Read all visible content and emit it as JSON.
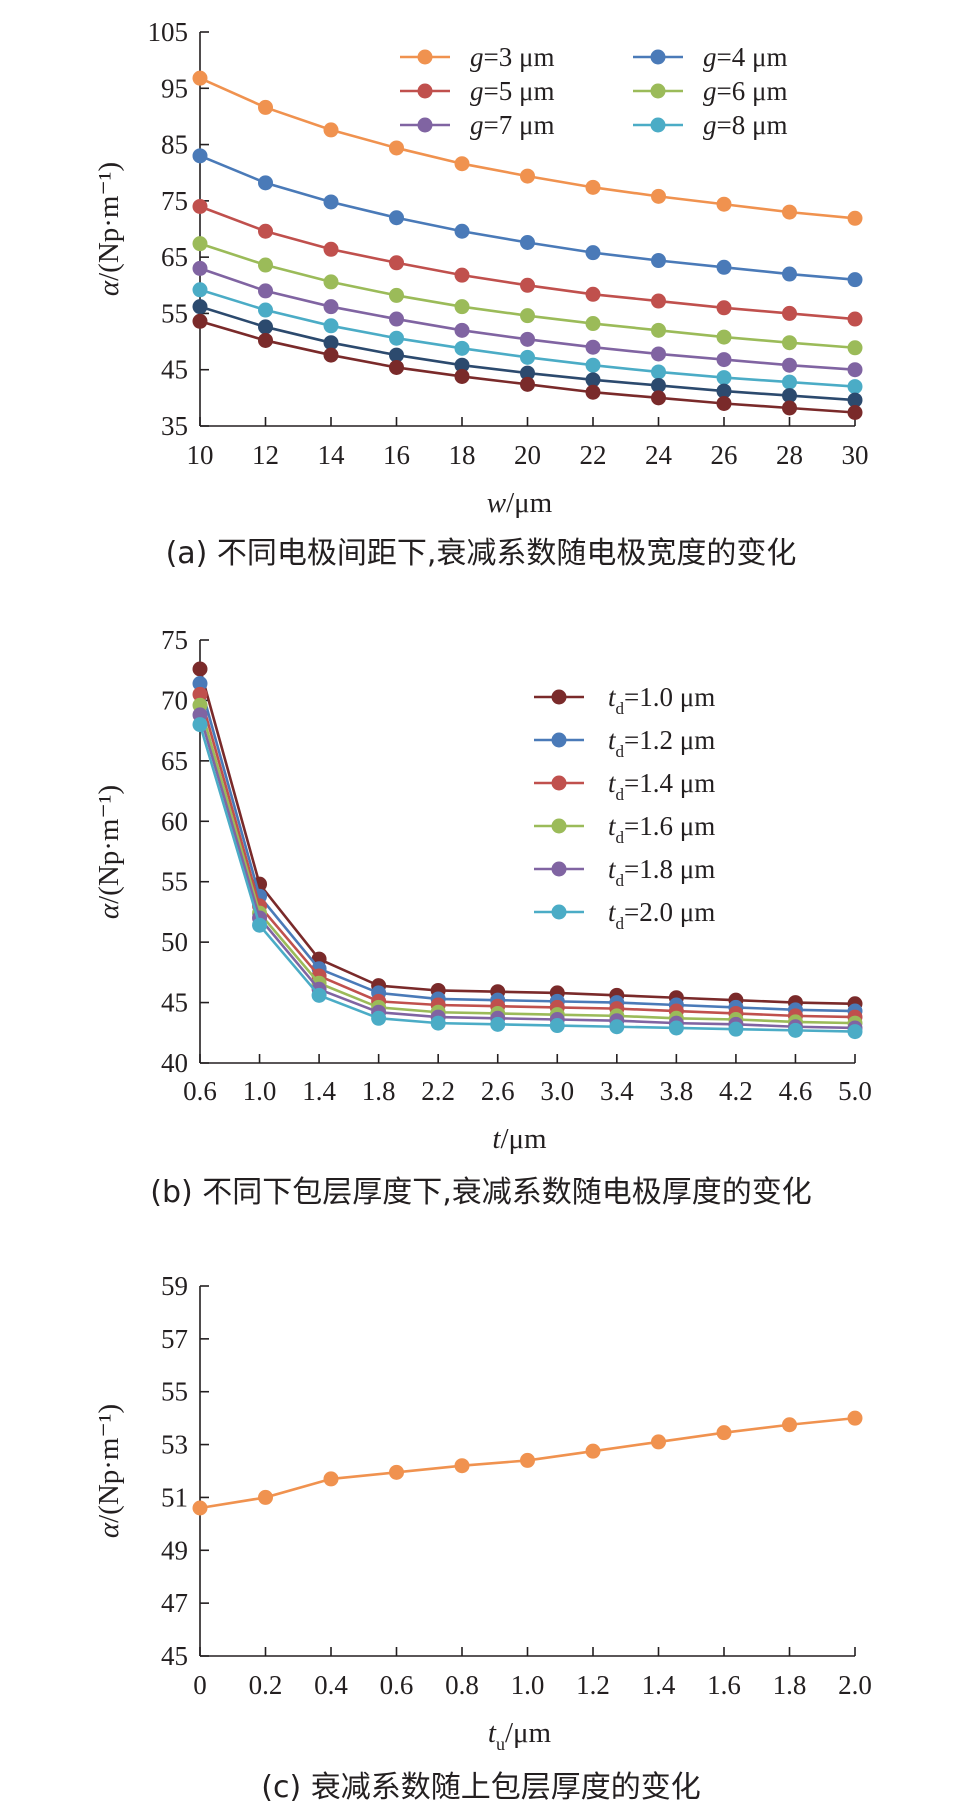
{
  "chart_data": [
    {
      "id": "a",
      "type": "line",
      "title": "",
      "caption": "(a) 不同电极间距下,衰减系数随电极宽度的变化",
      "xlabel": "w/μm",
      "ylabel": "α/(Np·m⁻¹)",
      "xlim": [
        10,
        30
      ],
      "ylim": [
        35,
        105
      ],
      "xticks": [
        "10",
        "12",
        "14",
        "16",
        "18",
        "20",
        "22",
        "24",
        "26",
        "28",
        "30"
      ],
      "yticks": [
        "35",
        "45",
        "55",
        "65",
        "75",
        "85",
        "95",
        "105"
      ],
      "grid": false,
      "legend_position": "top-right",
      "x": [
        10,
        12,
        14,
        16,
        18,
        20,
        22,
        24,
        26,
        28,
        30
      ],
      "series": [
        {
          "name": "g=3 μm",
          "color": "#f0924f",
          "values": [
            96.8,
            91.6,
            87.6,
            84.4,
            81.6,
            79.4,
            77.4,
            75.8,
            74.4,
            73.0,
            71.9
          ]
        },
        {
          "name": "g=4 μm",
          "color": "#4a7ab8",
          "values": [
            83.0,
            78.2,
            74.8,
            72.0,
            69.6,
            67.6,
            65.8,
            64.4,
            63.2,
            62.0,
            61.0
          ]
        },
        {
          "name": "g=5 μm",
          "color": "#c0504d",
          "values": [
            74.0,
            69.6,
            66.4,
            64.0,
            61.8,
            60.0,
            58.4,
            57.2,
            56.0,
            55.0,
            54.0
          ]
        },
        {
          "name": "g=6 μm",
          "color": "#9bbb59",
          "values": [
            67.4,
            63.6,
            60.6,
            58.2,
            56.2,
            54.6,
            53.2,
            52.0,
            50.8,
            49.8,
            48.9
          ]
        },
        {
          "name": "g=7 μm",
          "color": "#8064a2",
          "values": [
            63.0,
            59.0,
            56.2,
            54.0,
            52.0,
            50.4,
            49.0,
            47.8,
            46.8,
            45.8,
            45.0
          ]
        },
        {
          "name": "g=8 μm",
          "color": "#4bacc6",
          "values": [
            59.2,
            55.6,
            52.8,
            50.6,
            48.8,
            47.2,
            45.8,
            44.6,
            43.6,
            42.8,
            42.0
          ]
        },
        {
          "name": "",
          "color": "#2c4a6e",
          "values": [
            56.2,
            52.6,
            49.8,
            47.6,
            45.8,
            44.4,
            43.2,
            42.2,
            41.2,
            40.4,
            39.6
          ]
        },
        {
          "name": "",
          "color": "#7a2a2a",
          "values": [
            53.6,
            50.2,
            47.6,
            45.4,
            43.8,
            42.4,
            41.0,
            40.0,
            39.0,
            38.2,
            37.4
          ]
        }
      ]
    },
    {
      "id": "b",
      "type": "line",
      "title": "",
      "caption": "(b) 不同下包层厚度下,衰减系数随电极厚度的变化",
      "xlabel": "t/μm",
      "ylabel": "α/(Np·m⁻¹)",
      "xlim": [
        0.6,
        5.0
      ],
      "ylim": [
        40,
        75
      ],
      "xticks": [
        "0.6",
        "1.0",
        "1.4",
        "1.8",
        "2.2",
        "2.6",
        "3.0",
        "3.4",
        "3.8",
        "4.2",
        "4.6",
        "5.0"
      ],
      "yticks": [
        "40",
        "45",
        "50",
        "55",
        "60",
        "65",
        "70",
        "75"
      ],
      "grid": false,
      "legend_position": "top-right",
      "x": [
        0.6,
        1.0,
        1.4,
        1.8,
        2.2,
        2.6,
        3.0,
        3.4,
        3.8,
        4.2,
        4.6,
        5.0
      ],
      "series": [
        {
          "name": "td=1.0 μm",
          "name_sub": "d",
          "name_rest": "=1.0 μm",
          "color": "#7a2a2a",
          "values": [
            72.6,
            54.8,
            48.6,
            46.4,
            46.0,
            45.9,
            45.8,
            45.6,
            45.4,
            45.2,
            45.0,
            44.9
          ]
        },
        {
          "name": "td=1.2 μm",
          "name_sub": "d",
          "name_rest": "=1.2 μm",
          "color": "#4a7ab8",
          "values": [
            71.4,
            53.8,
            47.8,
            45.8,
            45.3,
            45.2,
            45.1,
            45.0,
            44.8,
            44.6,
            44.4,
            44.3
          ]
        },
        {
          "name": "td=1.4 μm",
          "name_sub": "d",
          "name_rest": "=1.4 μm",
          "color": "#c0504d",
          "values": [
            70.5,
            53.0,
            47.2,
            45.1,
            44.8,
            44.7,
            44.6,
            44.5,
            44.3,
            44.1,
            43.9,
            43.8
          ]
        },
        {
          "name": "td=1.6 μm",
          "name_sub": "d",
          "name_rest": "=1.6 μm",
          "color": "#9bbb59",
          "values": [
            69.6,
            52.4,
            46.6,
            44.6,
            44.2,
            44.1,
            44.0,
            43.9,
            43.7,
            43.6,
            43.4,
            43.3
          ]
        },
        {
          "name": "td=1.8 μm",
          "name_sub": "d",
          "name_rest": "=1.8 μm",
          "color": "#8064a2",
          "values": [
            68.8,
            52.0,
            46.1,
            44.2,
            43.8,
            43.7,
            43.6,
            43.5,
            43.3,
            43.2,
            43.0,
            42.9
          ]
        },
        {
          "name": "td=2.0 μm",
          "name_sub": "d",
          "name_rest": "=2.0 μm",
          "color": "#4bacc6",
          "values": [
            68.0,
            51.4,
            45.6,
            43.7,
            43.3,
            43.2,
            43.1,
            43.0,
            42.9,
            42.8,
            42.7,
            42.6
          ]
        }
      ]
    },
    {
      "id": "c",
      "type": "line",
      "title": "",
      "caption": "(c) 衰减系数随上包层厚度的变化",
      "xlabel": "tu/μm",
      "ylabel": "α/(Np·m⁻¹)",
      "xlim": [
        0,
        2.0
      ],
      "ylim": [
        45,
        59
      ],
      "xticks": [
        "0",
        "0.2",
        "0.4",
        "0.6",
        "0.8",
        "1.0",
        "1.2",
        "1.4",
        "1.6",
        "1.8",
        "2.0"
      ],
      "yticks": [
        "45",
        "47",
        "49",
        "51",
        "53",
        "55",
        "57",
        "59"
      ],
      "grid": false,
      "legend_position": "none",
      "x": [
        0,
        0.2,
        0.4,
        0.6,
        0.8,
        1.0,
        1.2,
        1.4,
        1.6,
        1.8,
        2.0
      ],
      "series": [
        {
          "name": "",
          "color": "#f0924f",
          "values": [
            50.6,
            51.0,
            51.7,
            51.95,
            52.2,
            52.4,
            52.75,
            53.1,
            53.45,
            53.75,
            54.0
          ]
        }
      ]
    }
  ]
}
